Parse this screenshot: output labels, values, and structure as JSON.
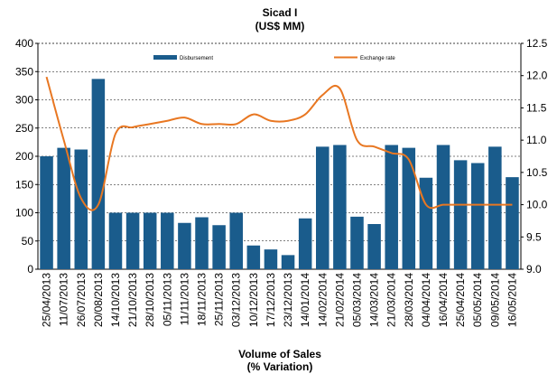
{
  "chart_data": {
    "type": "bar_line",
    "title": "Sicad I",
    "subtitle": "(US$ MM)",
    "xlabel": "Volume of Sales",
    "xlabel2": "(% Variation)",
    "categories": [
      "25/04/2013",
      "11/07/2013",
      "26/07/2013",
      "20/08/2013",
      "14/10/2013",
      "21/10/2013",
      "28/10/2013",
      "05/11/2013",
      "11/11/2013",
      "18/11/2013",
      "25/11/2013",
      "03/12/2013",
      "10/12/2013",
      "17/12/2013",
      "23/12/2013",
      "14/01/2014",
      "14/02/2014",
      "21/02/2014",
      "05/03/2014",
      "14/03/2014",
      "21/03/2014",
      "28/03/2014",
      "04/04/2014",
      "16/04/2014",
      "25/04/2014",
      "05/05/2014",
      "09/05/2014",
      "16/05/2014"
    ],
    "series": [
      {
        "name": "Disbursement",
        "color": "#1a5c8c",
        "values": [
          200,
          215,
          212,
          337,
          100,
          100,
          100,
          100,
          82,
          92,
          78,
          100,
          42,
          35,
          25,
          90,
          217,
          220,
          93,
          80,
          220,
          215,
          162,
          220,
          193,
          188,
          217,
          163
        ]
      },
      {
        "name": "Exchange rate",
        "color": "#e87722",
        "axis": "y2",
        "values": [
          11.98,
          11.0,
          10.1,
          10.0,
          11.1,
          11.2,
          11.25,
          11.3,
          11.35,
          11.25,
          11.25,
          11.25,
          11.4,
          11.3,
          11.3,
          11.4,
          11.7,
          11.8,
          11.0,
          10.9,
          10.8,
          10.7,
          10.0,
          10.0,
          10.0,
          10.0,
          10.0,
          10.0
        ]
      }
    ],
    "ylim": [
      0,
      400
    ],
    "yticks": [
      0,
      50,
      100,
      150,
      200,
      250,
      300,
      350,
      400
    ],
    "y2lim": [
      9.0,
      12.5
    ],
    "y2ticks": [
      {
        "value": 9.0,
        "label": "9.0"
      },
      9.5,
      {
        "value": 10.0,
        "label": "10.0"
      },
      10.5,
      {
        "value": 11.0,
        "label": "11.0"
      },
      11.5,
      {
        "value": 12.0,
        "label": "12.0"
      },
      12.5
    ],
    "grid": true
  }
}
